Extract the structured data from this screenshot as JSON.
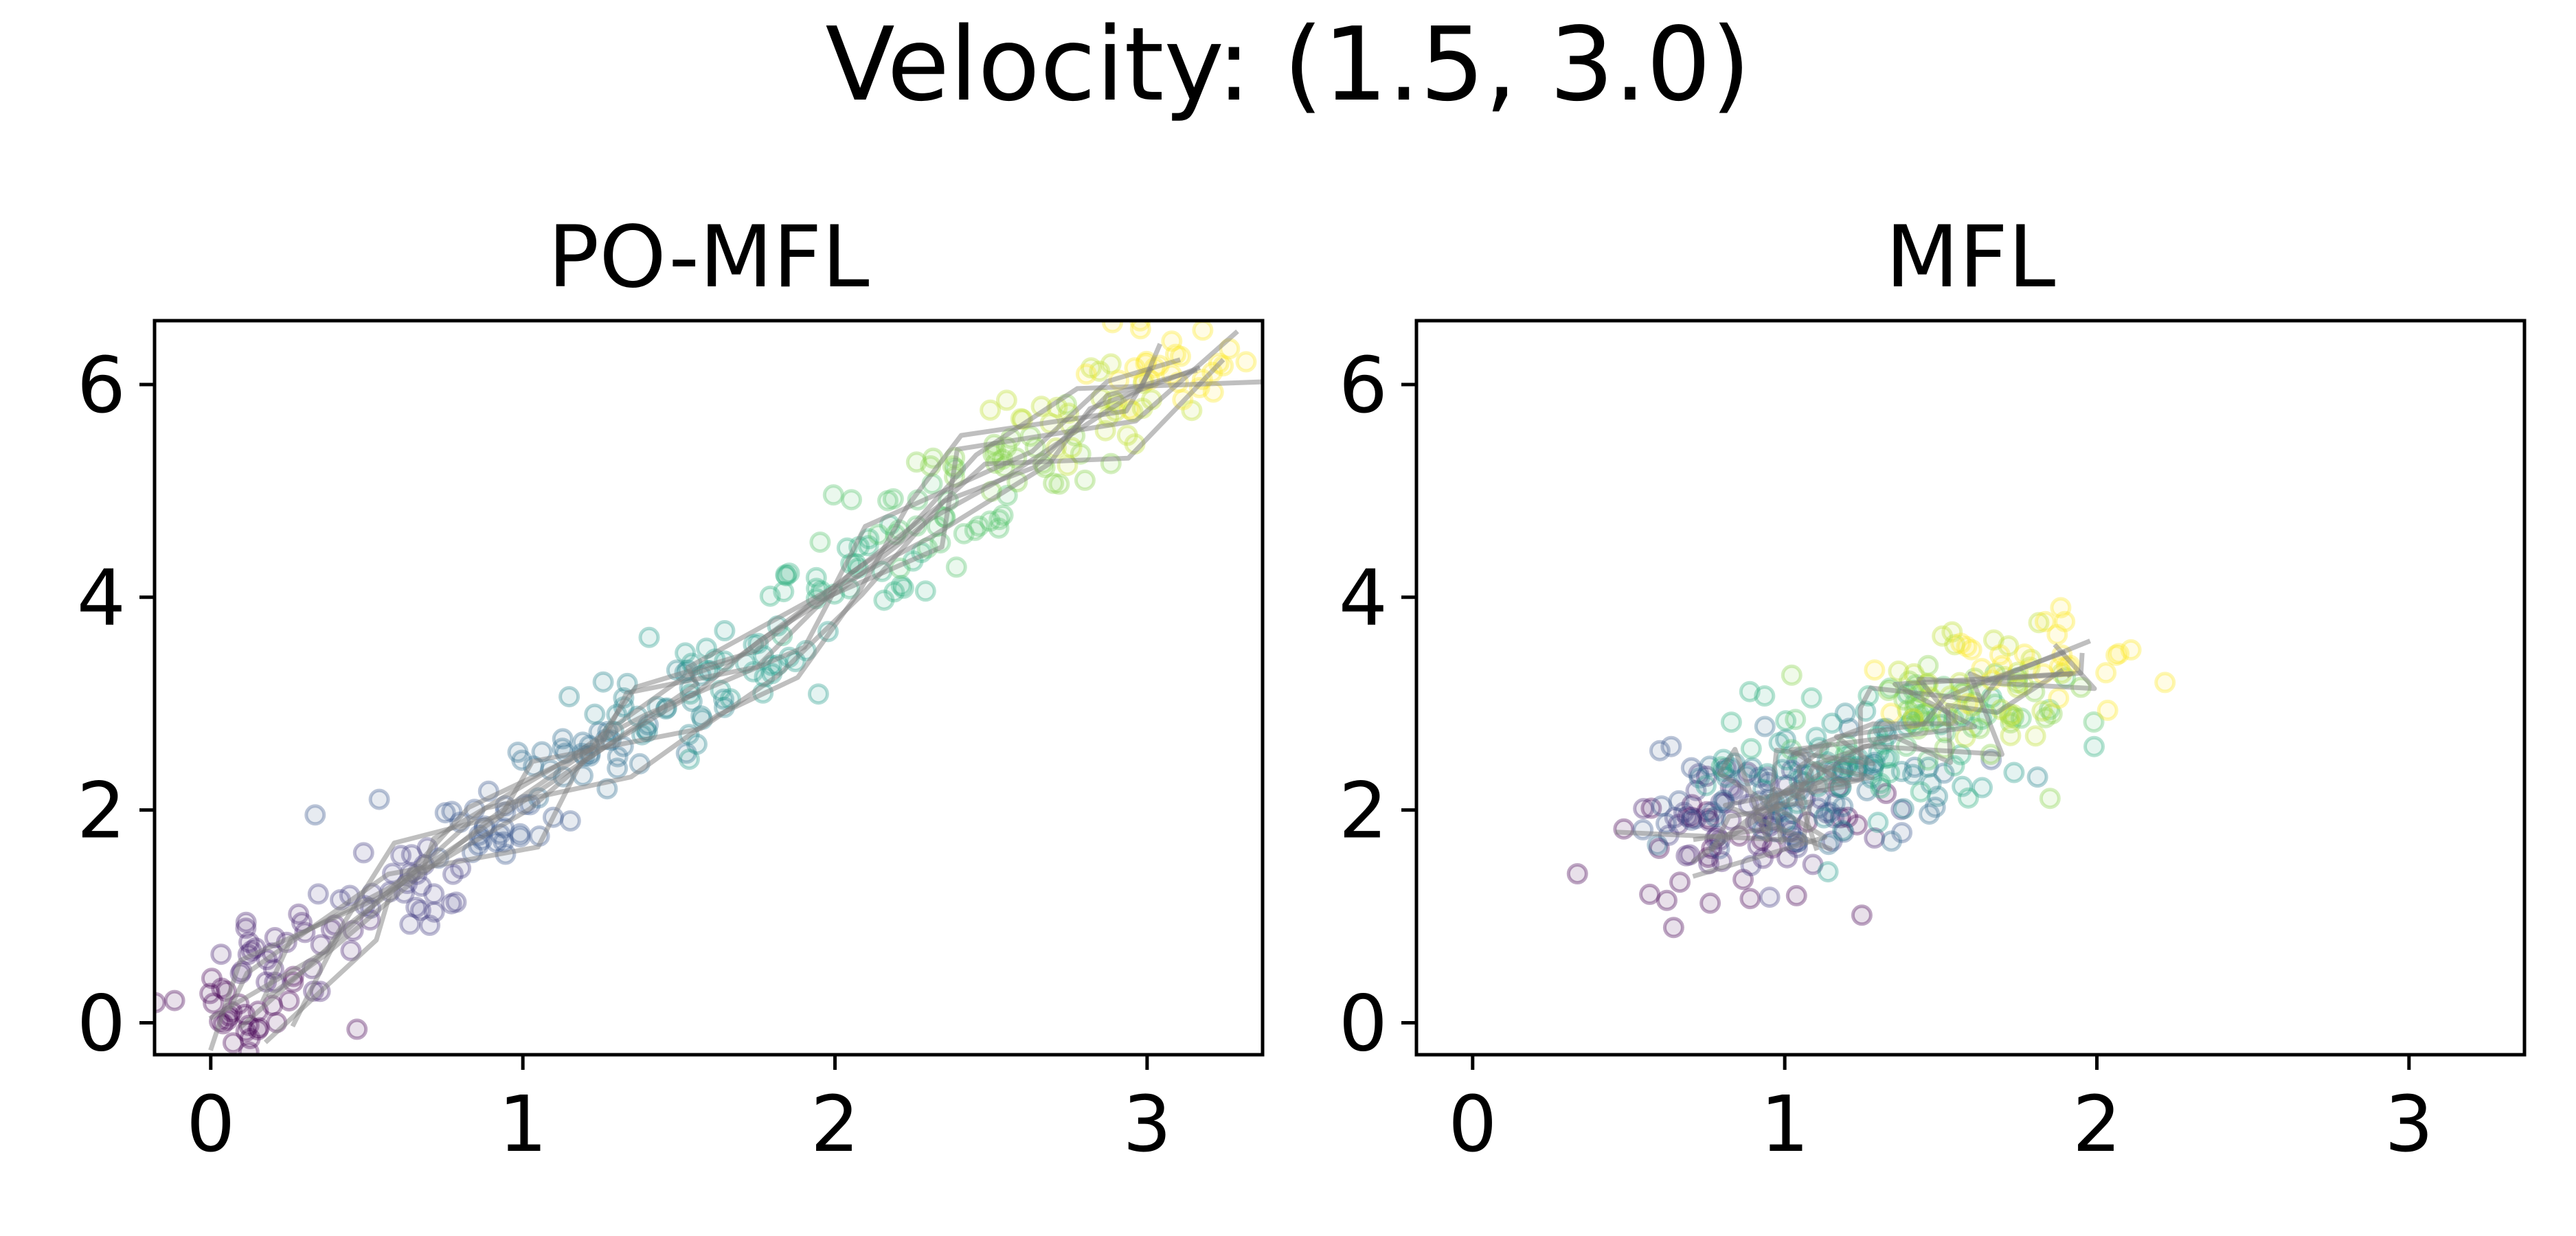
{
  "figure": {
    "suptitle": "Velocity: (1.5, 3.0)"
  },
  "chart_data": [
    {
      "type": "scatter",
      "title": "PO-MFL",
      "xlabel": "",
      "ylabel": "",
      "xlim": [
        -0.18,
        3.37
      ],
      "ylim": [
        -0.3,
        6.6
      ],
      "xticks": [
        0,
        1,
        2,
        3
      ],
      "yticks": [
        0,
        2,
        4,
        6
      ],
      "colormap": "viridis",
      "color_meaning": "time step (purple = early, yellow = late)",
      "point_style": {
        "marker": "circle-outline",
        "alpha": 0.25
      },
      "time_steps": 12,
      "cluster_centers": [
        {
          "t": 0,
          "x": 0.08,
          "y": 0.1
        },
        {
          "t": 1,
          "x": 0.3,
          "y": 0.65
        },
        {
          "t": 2,
          "x": 0.6,
          "y": 1.3
        },
        {
          "t": 3,
          "x": 0.9,
          "y": 1.85
        },
        {
          "t": 4,
          "x": 1.2,
          "y": 2.5
        },
        {
          "t": 5,
          "x": 1.45,
          "y": 3.0
        },
        {
          "t": 6,
          "x": 1.75,
          "y": 3.4
        },
        {
          "t": 7,
          "x": 2.05,
          "y": 4.15
        },
        {
          "t": 8,
          "x": 2.3,
          "y": 4.7
        },
        {
          "t": 9,
          "x": 2.55,
          "y": 5.3
        },
        {
          "t": 10,
          "x": 2.85,
          "y": 5.75
        },
        {
          "t": 11,
          "x": 3.1,
          "y": 6.2
        }
      ],
      "trajectories": 8,
      "trajectory_color": "#808080"
    },
    {
      "type": "scatter",
      "title": "MFL",
      "xlabel": "",
      "ylabel": "",
      "xlim": [
        -0.18,
        3.37
      ],
      "ylim": [
        -0.3,
        6.6
      ],
      "xticks": [
        0,
        1,
        2,
        3
      ],
      "yticks": [
        0,
        2,
        4,
        6
      ],
      "colormap": "viridis",
      "color_meaning": "time step (purple = early, yellow = late)",
      "point_style": {
        "marker": "circle-outline",
        "alpha": 0.25
      },
      "time_steps": 12,
      "cluster_centers": [
        {
          "t": 0,
          "x": 0.85,
          "y": 1.6
        },
        {
          "t": 1,
          "x": 0.9,
          "y": 1.8
        },
        {
          "t": 2,
          "x": 0.95,
          "y": 1.95
        },
        {
          "t": 3,
          "x": 1.0,
          "y": 2.1
        },
        {
          "t": 4,
          "x": 1.05,
          "y": 2.2
        },
        {
          "t": 5,
          "x": 1.15,
          "y": 2.35
        },
        {
          "t": 6,
          "x": 1.25,
          "y": 2.5
        },
        {
          "t": 7,
          "x": 1.35,
          "y": 2.65
        },
        {
          "t": 8,
          "x": 1.45,
          "y": 2.8
        },
        {
          "t": 9,
          "x": 1.55,
          "y": 2.95
        },
        {
          "t": 10,
          "x": 1.65,
          "y": 3.15
        },
        {
          "t": 11,
          "x": 1.8,
          "y": 3.45
        }
      ],
      "trajectories": 6,
      "trajectory_color": "#808080"
    }
  ]
}
